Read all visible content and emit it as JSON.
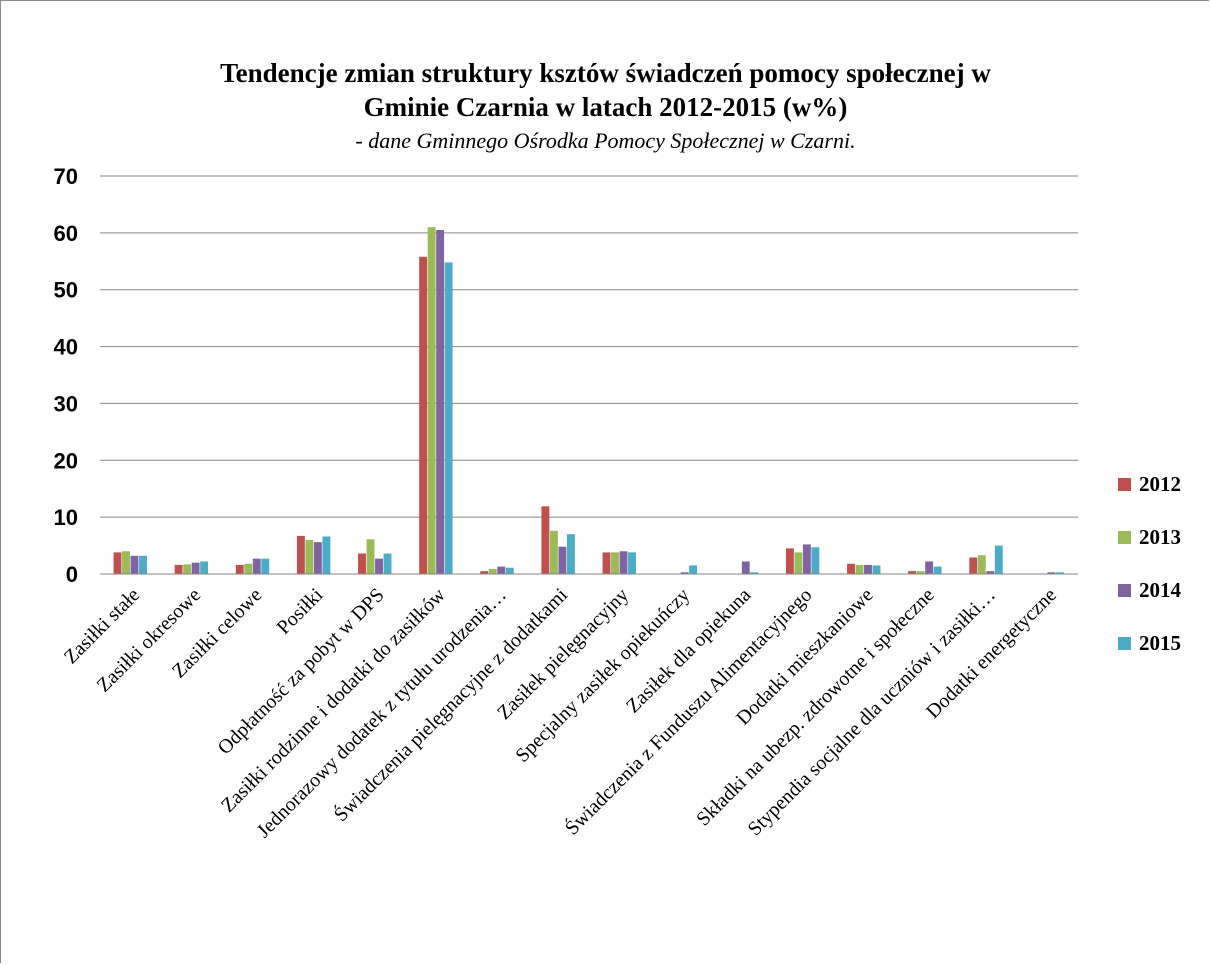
{
  "chart_data": {
    "type": "bar",
    "title_lines": [
      "Tendencje zmian struktury ksztów świadczeń pomocy społecznej w",
      "Gminie Czarnia w latach 2012-2015 (w%)"
    ],
    "subtitle": "- dane Gminnego Ośrodka Pomocy Społecznej w Czarni.",
    "ylim": [
      0,
      70
    ],
    "yticks": [
      0,
      10,
      20,
      30,
      40,
      50,
      60,
      70
    ],
    "grid": true,
    "legend_position": "right",
    "categories": [
      "Zasiłki stałe",
      "Zasiłki okresowe",
      "Zasiłki celowe",
      "Posiłki",
      "Odpłatność za pobyt w DPS",
      "Zasiłki rodzinne i dodatki do zasiłków",
      "Jednorazowy dodatek z tytułu urodzenia…",
      "Świadczenia pielęgnacyjne z dodatkami",
      "Zasiłek pielęgnacyjny",
      "Specjalny zasiłek opiekuńczy",
      "Zasiłek dla opiekuna",
      "Świadczenia z Funduszu Alimentacyjnego",
      "Dodatki mieszkaniowe",
      "Składki na ubezp. zdrowotne i społeczne",
      "Stypendia socjalne dla uczniów i zasiłki…",
      "Dodatki energetyczne"
    ],
    "series": [
      {
        "name": "2012",
        "color": "#c0504d",
        "values": [
          3.8,
          1.6,
          1.6,
          6.7,
          3.6,
          55.8,
          0.5,
          11.9,
          3.8,
          0,
          0,
          4.5,
          1.8,
          0.5,
          2.9,
          0
        ]
      },
      {
        "name": "2013",
        "color": "#9bbb59",
        "values": [
          4.0,
          1.7,
          1.8,
          6.0,
          6.1,
          61.0,
          0.9,
          7.6,
          3.8,
          0,
          0,
          3.8,
          1.6,
          0.5,
          3.3,
          0
        ]
      },
      {
        "name": "2014",
        "color": "#8064a2",
        "values": [
          3.2,
          2.0,
          2.7,
          5.6,
          2.7,
          60.5,
          1.3,
          4.8,
          4.0,
          0.3,
          2.2,
          5.2,
          1.6,
          2.2,
          0.5,
          0.3
        ]
      },
      {
        "name": "2015",
        "color": "#4bacc6",
        "values": [
          3.2,
          2.2,
          2.7,
          6.6,
          3.6,
          54.8,
          1.1,
          7.0,
          3.8,
          1.5,
          0.3,
          4.7,
          1.5,
          1.3,
          5.0,
          0.3
        ]
      }
    ]
  }
}
